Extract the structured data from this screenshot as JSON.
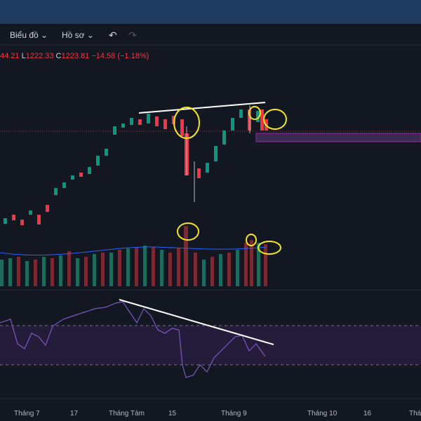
{
  "toolbar": {
    "chart_menu": "Biểu đồ",
    "profile_menu": "Hồ sơ"
  },
  "legend": {
    "high": "44.21",
    "low_label": "L",
    "low": "1222.33",
    "close_label": "C",
    "close": "1223.81",
    "change": "−14.58 (−1.18%)"
  },
  "time_axis": {
    "labels": [
      "Tháng 7",
      "17",
      "Tháng Tám",
      "15",
      "Tháng 9",
      "Tháng 10",
      "16",
      "Tháng"
    ]
  }
}
